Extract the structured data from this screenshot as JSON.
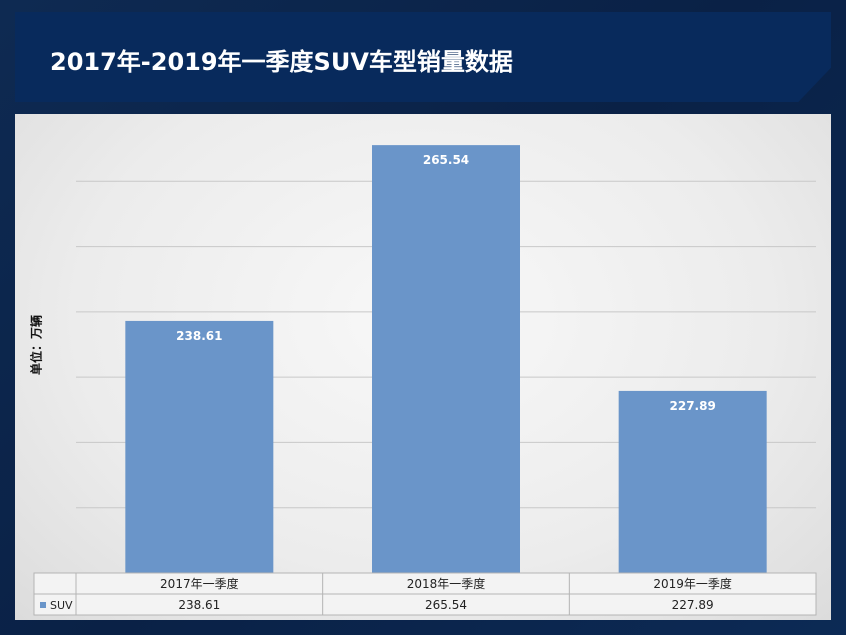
{
  "header": {
    "title": "2017年-2019年一季度SUV车型销量数据"
  },
  "colors": {
    "bar": "#6a95c9",
    "title_bar": "#082a5c",
    "background": "#0c2548"
  },
  "chart_data": {
    "type": "bar",
    "categories": [
      "2017年一季度",
      "2018年一季度",
      "2019年一季度"
    ],
    "series": [
      {
        "name": "SUV",
        "values": [
          238.61,
          265.54,
          227.89
        ]
      }
    ],
    "ylabel": "单位：万辆",
    "ylim": [
      200,
      270
    ],
    "grid": true,
    "legend": "data-table-left",
    "data_table": true
  }
}
